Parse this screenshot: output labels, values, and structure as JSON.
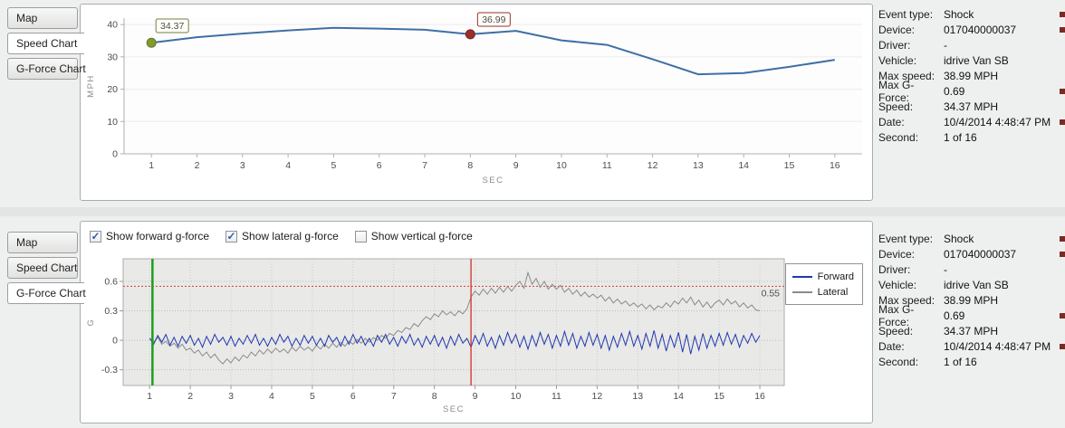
{
  "tabs": {
    "items": [
      "Map",
      "Speed Chart",
      "G-Force Chart"
    ],
    "top_selected": "Speed Chart",
    "bottom_selected": "G-Force Chart"
  },
  "info_panel": {
    "marker_color": "#7a2b24",
    "rows": [
      {
        "label": "Event type:",
        "value": "Shock",
        "marker": true
      },
      {
        "label": "Device:",
        "value": "017040000037",
        "marker": true
      },
      {
        "label": "Driver:",
        "value": "-",
        "marker": false
      },
      {
        "label": "Vehicle:",
        "value": "idrive Van SB",
        "marker": false
      },
      {
        "label": "Max speed:",
        "value": "38.99 MPH",
        "marker": false
      },
      {
        "label": "Max G-Force:",
        "value": "0.69",
        "marker": true
      },
      {
        "label": "Speed:",
        "value": "34.37 MPH",
        "marker": false
      },
      {
        "label": "Date:",
        "value": "10/4/2014 4:48:47 PM",
        "marker": true
      },
      {
        "label": "Second:",
        "value": "1 of 16",
        "marker": false
      }
    ]
  },
  "gforce_controls": {
    "check_color": "#2a5fae",
    "checkboxes": [
      {
        "label": "Show forward g-force",
        "checked": true
      },
      {
        "label": "Show lateral g-force",
        "checked": true
      },
      {
        "label": "Show vertical g-force",
        "checked": false
      }
    ]
  },
  "chart_data": [
    {
      "type": "line",
      "title": "Speed Chart",
      "xlabel": "SEC",
      "ylabel": "MPH",
      "x": [
        1,
        2,
        3,
        4,
        5,
        6,
        7,
        8,
        9,
        10,
        11,
        12,
        13,
        14,
        15,
        16
      ],
      "values": [
        34.37,
        36.1,
        37.2,
        38.2,
        38.99,
        38.75,
        38.4,
        36.99,
        38.05,
        35.1,
        33.7,
        29.3,
        24.6,
        25.0,
        26.9,
        29.1
      ],
      "xlim": [
        0.4,
        16.6
      ],
      "ylim": [
        0,
        42
      ],
      "yticks": [
        0,
        10,
        20,
        30,
        40
      ],
      "line_color": "#3e6fa6",
      "markers": [
        {
          "x": 1,
          "y": 34.37,
          "label": "34.37",
          "color": "#7f9b30",
          "stroke": "#5f7a22",
          "label_color": "#73803a"
        },
        {
          "x": 8,
          "y": 36.99,
          "label": "36.99",
          "color": "#9c2f28",
          "stroke": "#7a221c",
          "label_color": "#9b3030"
        }
      ]
    },
    {
      "type": "line",
      "title": "G-Force Chart",
      "xlabel": "SEC",
      "ylabel": "G",
      "x_start": 1,
      "x_step": 0.1,
      "xticks": [
        1,
        2,
        3,
        4,
        5,
        6,
        7,
        8,
        9,
        10,
        11,
        12,
        13,
        14,
        15,
        16
      ],
      "yticks": [
        0.6,
        0.3,
        0,
        -0.3
      ],
      "xlim": [
        0.35,
        16.6
      ],
      "ylim": [
        -0.46,
        0.83
      ],
      "threshold": {
        "value": 0.55,
        "label": "0.55",
        "color": "#cc4040"
      },
      "vlines": [
        {
          "x": 1.07,
          "color": "#1f9d1f",
          "width": 2.5,
          "name": "current-second-cursor"
        },
        {
          "x": 8.9,
          "color": "#d03030",
          "width": 1.3,
          "name": "event-time-cursor"
        }
      ],
      "series": [
        {
          "name": "Lateral",
          "color": "#8a8a8a",
          "values": [
            0.02,
            -0.02,
            0.03,
            -0.04,
            -0.01,
            -0.06,
            -0.03,
            -0.08,
            -0.04,
            -0.1,
            -0.08,
            -0.13,
            -0.1,
            -0.16,
            -0.12,
            -0.18,
            -0.14,
            -0.2,
            -0.24,
            -0.19,
            -0.23,
            -0.17,
            -0.21,
            -0.15,
            -0.18,
            -0.12,
            -0.16,
            -0.1,
            -0.14,
            -0.09,
            -0.13,
            -0.08,
            -0.12,
            -0.09,
            -0.13,
            -0.07,
            -0.11,
            -0.06,
            -0.1,
            -0.07,
            -0.11,
            -0.05,
            -0.09,
            -0.04,
            -0.08,
            -0.03,
            -0.07,
            -0.02,
            -0.06,
            -0.01,
            -0.04,
            0.01,
            -0.03,
            0.02,
            -0.02,
            0.03,
            0.0,
            0.05,
            0.02,
            0.07,
            0.05,
            0.1,
            0.08,
            0.13,
            0.11,
            0.17,
            0.14,
            0.2,
            0.24,
            0.21,
            0.27,
            0.24,
            0.3,
            0.26,
            0.29,
            0.25,
            0.3,
            0.27,
            0.32,
            0.44,
            0.5,
            0.46,
            0.52,
            0.47,
            0.53,
            0.48,
            0.54,
            0.49,
            0.55,
            0.5,
            0.56,
            0.6,
            0.53,
            0.69,
            0.57,
            0.63,
            0.54,
            0.6,
            0.52,
            0.57,
            0.52,
            0.56,
            0.49,
            0.53,
            0.47,
            0.51,
            0.45,
            0.49,
            0.44,
            0.47,
            0.43,
            0.46,
            0.4,
            0.44,
            0.38,
            0.42,
            0.37,
            0.4,
            0.35,
            0.38,
            0.34,
            0.37,
            0.32,
            0.36,
            0.31,
            0.35,
            0.33,
            0.38,
            0.34,
            0.4,
            0.37,
            0.43,
            0.38,
            0.44,
            0.36,
            0.41,
            0.34,
            0.39,
            0.33,
            0.38,
            0.41,
            0.36,
            0.42,
            0.37,
            0.4,
            0.34,
            0.38,
            0.33,
            0.36,
            0.31,
            0.3
          ]
        },
        {
          "name": "Forward",
          "color": "#2038b0",
          "values": [
            0.02,
            -0.04,
            0.05,
            -0.02,
            0.06,
            -0.05,
            0.03,
            -0.06,
            0.04,
            -0.03,
            0.05,
            -0.05,
            0.02,
            -0.07,
            0.04,
            -0.04,
            0.06,
            -0.02,
            0.03,
            -0.05,
            0.04,
            -0.06,
            0.02,
            -0.04,
            0.05,
            -0.03,
            0.06,
            -0.05,
            0.02,
            -0.06,
            0.03,
            -0.04,
            0.06,
            -0.02,
            0.04,
            -0.06,
            0.02,
            -0.05,
            0.05,
            -0.03,
            0.04,
            -0.05,
            0.02,
            -0.06,
            0.05,
            -0.02,
            0.03,
            -0.06,
            0.04,
            -0.04,
            0.06,
            -0.03,
            0.04,
            -0.05,
            0.02,
            -0.06,
            0.05,
            -0.02,
            0.06,
            -0.04,
            0.03,
            -0.06,
            0.04,
            -0.03,
            0.06,
            -0.05,
            0.02,
            -0.07,
            0.04,
            -0.04,
            0.05,
            -0.06,
            0.03,
            -0.08,
            0.04,
            -0.05,
            0.06,
            -0.03,
            0.02,
            -0.07,
            0.05,
            -0.04,
            0.07,
            -0.06,
            0.03,
            -0.08,
            0.05,
            -0.05,
            0.08,
            -0.03,
            0.06,
            -0.07,
            0.04,
            -0.09,
            0.05,
            -0.06,
            0.08,
            -0.04,
            0.06,
            -0.08,
            0.05,
            -0.06,
            0.09,
            -0.05,
            0.07,
            -0.08,
            0.04,
            -0.06,
            0.08,
            -0.05,
            0.06,
            -0.08,
            0.05,
            -0.1,
            0.04,
            -0.07,
            0.07,
            -0.05,
            0.09,
            -0.06,
            0.05,
            -0.09,
            0.07,
            -0.06,
            0.1,
            -0.08,
            0.06,
            -0.11,
            0.05,
            -0.07,
            0.08,
            -0.12,
            0.06,
            -0.14,
            0.04,
            -0.1,
            0.07,
            -0.08,
            0.05,
            -0.06,
            0.07,
            -0.05,
            0.08,
            -0.04,
            0.06,
            -0.07,
            0.05,
            -0.03,
            0.07,
            -0.02,
            0.05
          ]
        }
      ],
      "legend": [
        "Forward",
        "Lateral"
      ],
      "legend_position": "right"
    }
  ]
}
